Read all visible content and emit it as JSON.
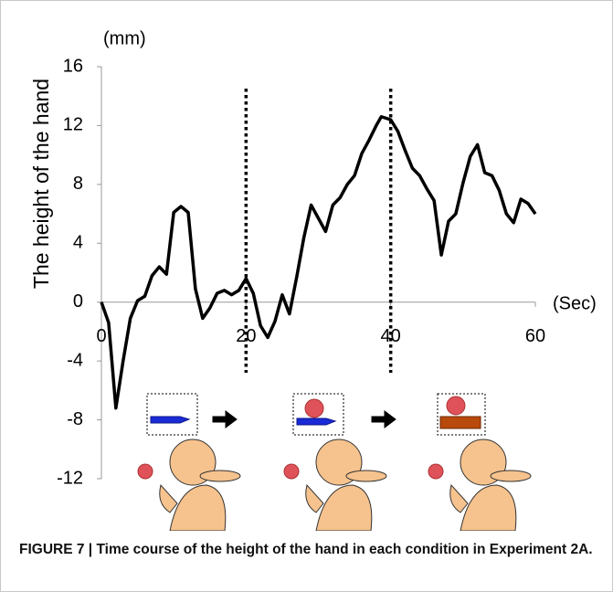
{
  "chart_data": {
    "type": "line",
    "y_label": "The height of the hand",
    "y_unit": "(mm)",
    "x_unit": "(Sec)",
    "x": [
      0,
      1,
      2,
      3,
      4,
      5,
      6,
      7,
      8,
      9,
      10,
      11,
      12,
      13,
      14,
      15,
      16,
      17,
      18,
      19,
      20,
      21,
      22,
      23,
      24,
      25,
      26,
      27,
      28,
      29,
      30,
      31,
      32,
      33,
      34,
      35,
      36,
      37,
      38,
      38.7,
      40,
      41,
      42,
      43,
      44,
      45,
      46,
      47,
      48,
      49,
      50,
      51,
      52,
      53,
      54,
      55,
      56,
      57,
      58,
      59,
      60
    ],
    "series": [
      {
        "color": "#000000",
        "values": [
          0,
          -1.4,
          -7.2,
          -4,
          -1.1,
          0.1,
          0.4,
          1.8,
          2.4,
          1.9,
          6.1,
          6.5,
          6.1,
          0.9,
          -1.1,
          -0.4,
          0.6,
          0.8,
          0.5,
          0.8,
          1.6,
          0.6,
          -1.6,
          -2.4,
          -1.3,
          0.5,
          -0.8,
          1.7,
          4.4,
          6.6,
          5.7,
          4.8,
          6.6,
          7.1,
          8,
          8.6,
          10.1,
          11,
          12,
          12.6,
          12.4,
          11.6,
          10.3,
          9.1,
          8.6,
          7.7,
          6.9,
          3.2,
          5.5,
          6,
          8.1,
          9.9,
          10.7,
          8.8,
          8.6,
          7.6,
          6,
          5.4,
          7,
          6.7,
          6
        ]
      }
    ],
    "xlim": [
      0,
      60
    ],
    "xticks": [
      0,
      20,
      40,
      60
    ],
    "ylim": [
      -12,
      16
    ],
    "yticks": [
      -12,
      -8,
      -4,
      0,
      4,
      8,
      12,
      16
    ],
    "vlines": [
      20,
      40
    ]
  },
  "caption": {
    "label": "FIGURE 7 |",
    "text": "Time course of the height of the hand in each condition in Experiment 2A."
  }
}
